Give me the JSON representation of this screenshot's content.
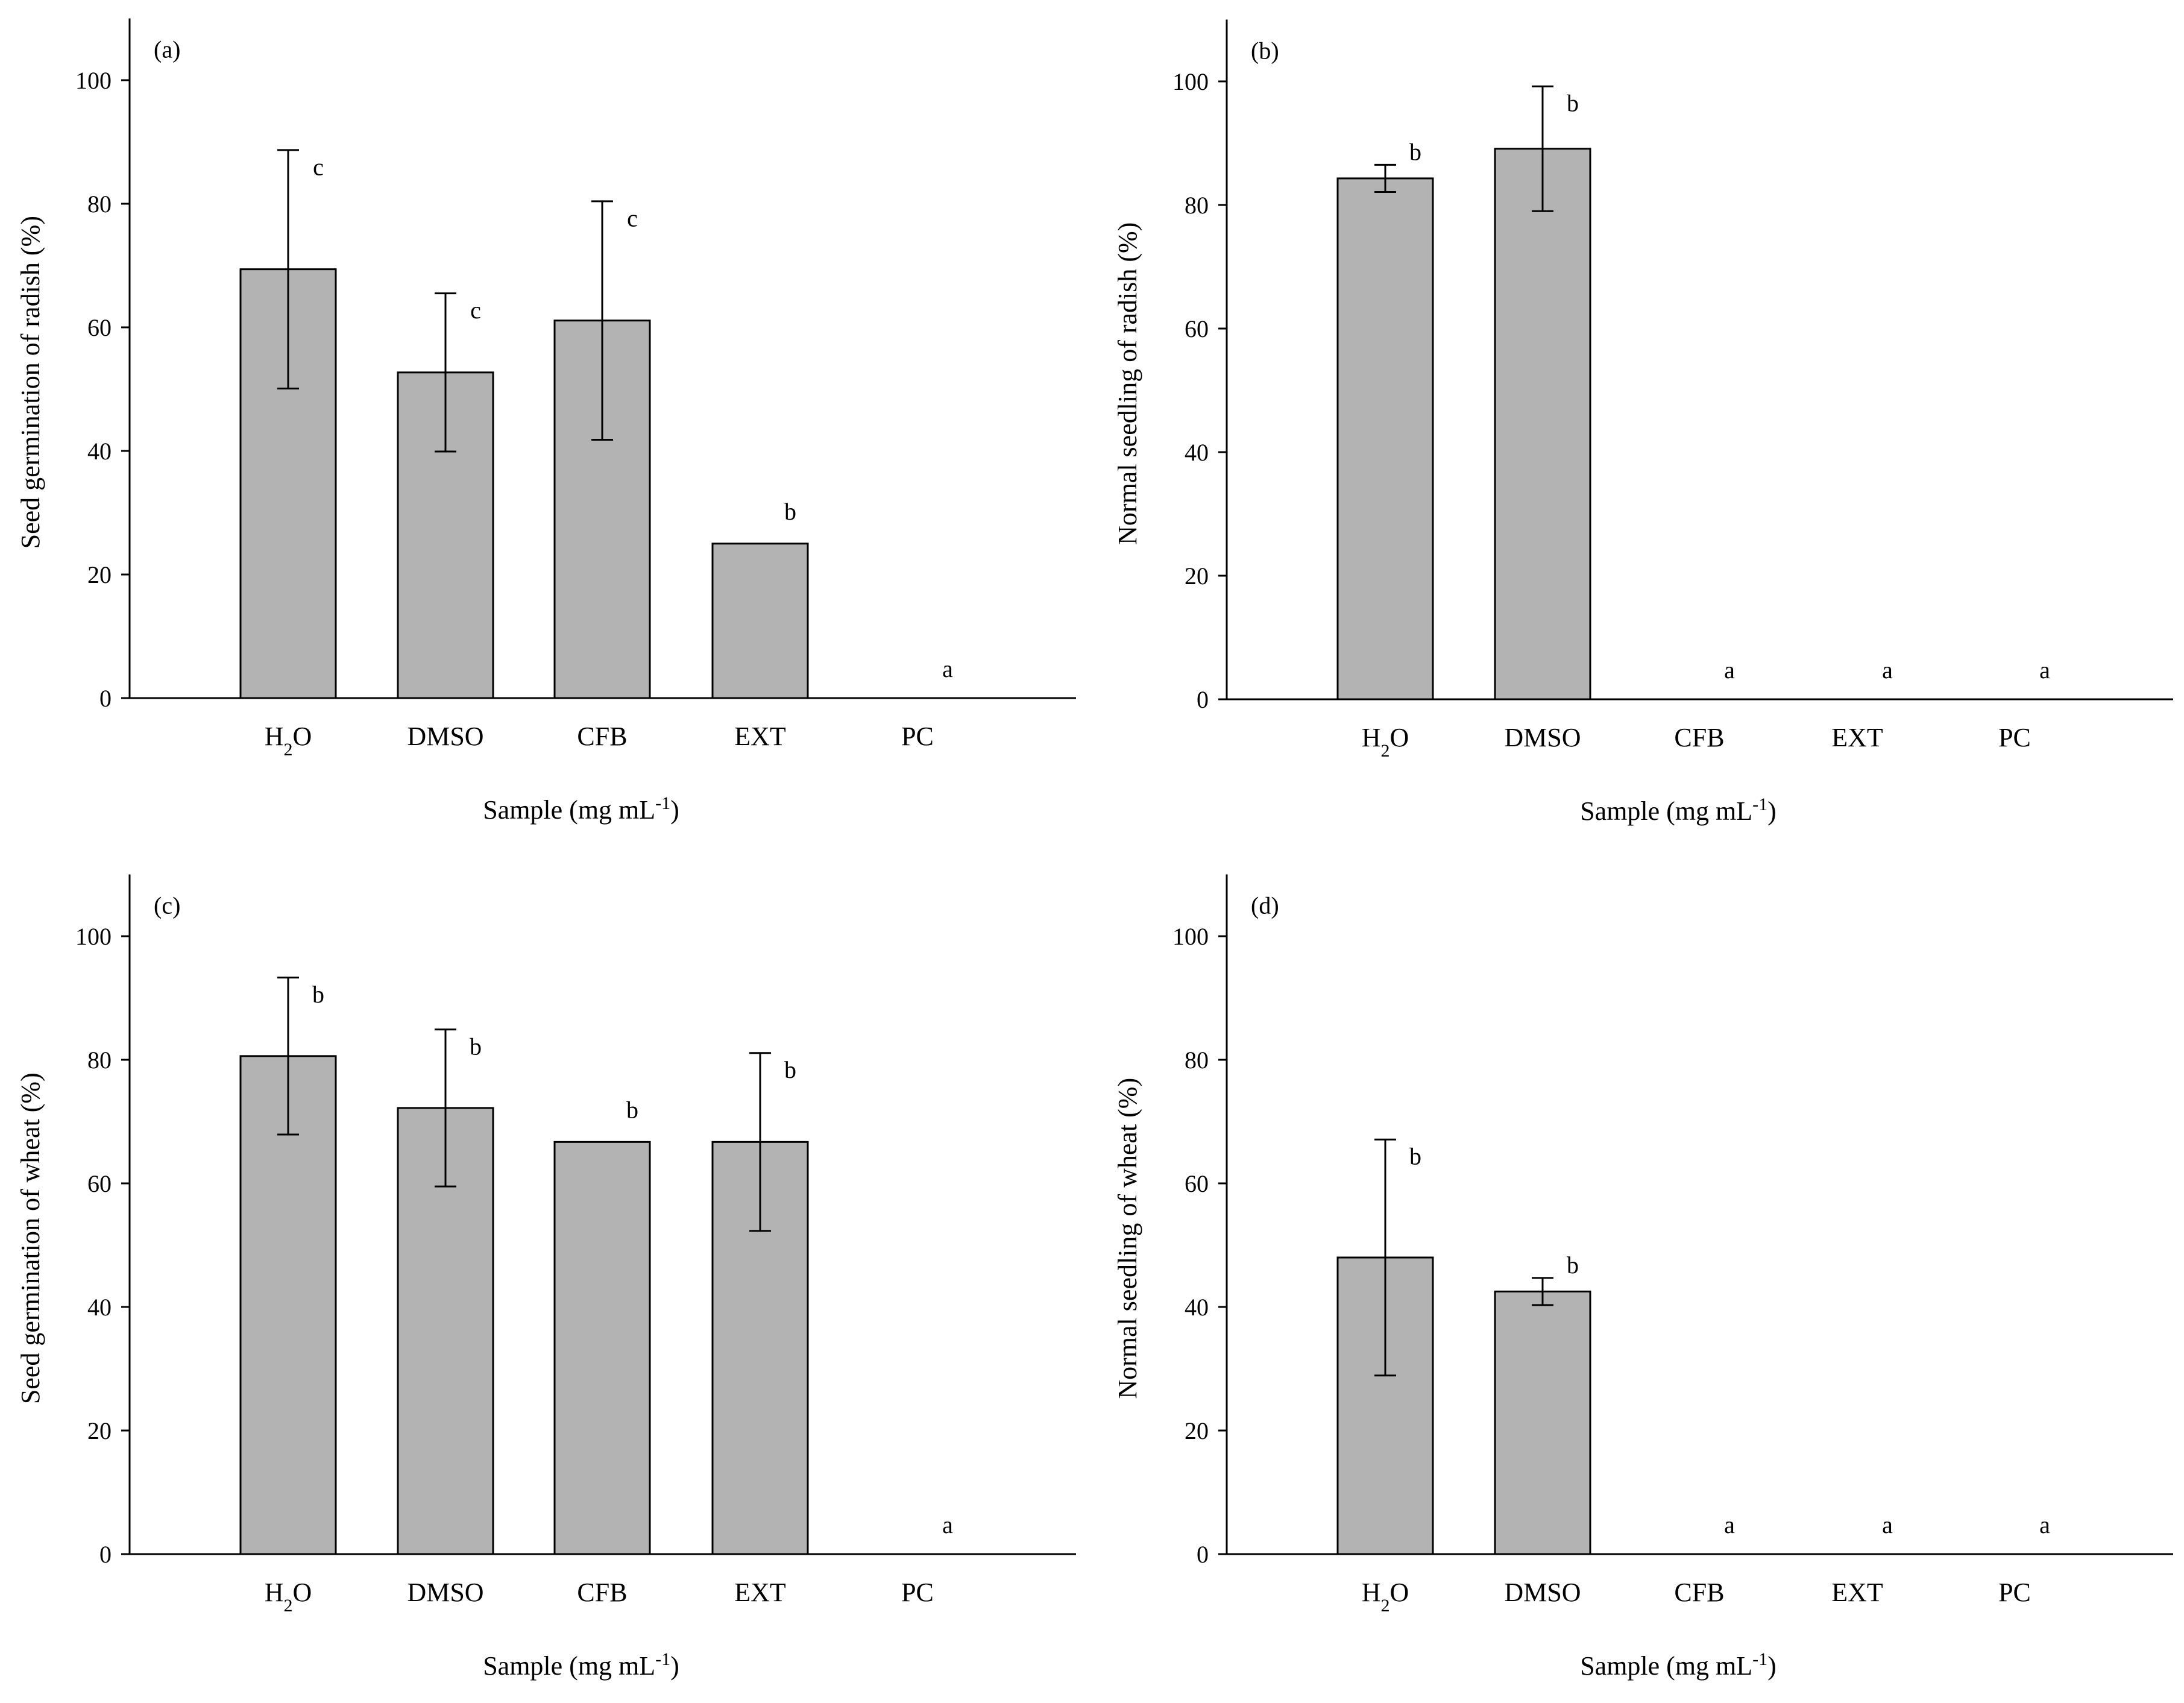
{
  "chart_data": [
    {
      "type": "bar",
      "panel_label": "(a)",
      "categories": [
        "H2O",
        "DMSO",
        "CFB",
        "EXT",
        "PC"
      ],
      "values": [
        69.4,
        52.7,
        61.1,
        25.0,
        0
      ],
      "errors": [
        19.3,
        12.8,
        19.3,
        0,
        0
      ],
      "significance": [
        "c",
        "c",
        "c",
        "b",
        "a"
      ],
      "xlabel": "Sample (mg mL",
      "xlabel_sup": "-1",
      "xlabel_end": ")",
      "ylabel": "Seed germination of radish (%)",
      "ylim": [
        0,
        110
      ],
      "yticks": [
        0,
        20,
        40,
        60,
        80,
        100
      ]
    },
    {
      "type": "bar",
      "panel_label": "(b)",
      "categories": [
        "H2O",
        "DMSO",
        "CFB",
        "EXT",
        "PC"
      ],
      "values": [
        84.3,
        89.1,
        0,
        0,
        0
      ],
      "errors": [
        2.2,
        10.1,
        0,
        0,
        0
      ],
      "significance": [
        "b",
        "b",
        "a",
        "a",
        "a"
      ],
      "xlabel": "Sample (mg mL",
      "xlabel_sup": "-1",
      "xlabel_end": ")",
      "ylabel": "Normal seedling of radish (%)",
      "ylim": [
        0,
        110
      ],
      "yticks": [
        0,
        20,
        40,
        60,
        80,
        100
      ]
    },
    {
      "type": "bar",
      "panel_label": "(c)",
      "categories": [
        "H2O",
        "DMSO",
        "CFB",
        "EXT",
        "PC"
      ],
      "values": [
        80.6,
        72.2,
        66.7,
        66.7,
        0
      ],
      "errors": [
        12.7,
        12.7,
        0,
        14.4,
        0
      ],
      "significance": [
        "b",
        "b",
        "b",
        "b",
        "a"
      ],
      "xlabel": "Sample (mg mL",
      "xlabel_sup": "-1",
      "xlabel_end": ")",
      "ylabel": "Seed germination of wheat (%)",
      "ylim": [
        0,
        110
      ],
      "yticks": [
        0,
        20,
        40,
        60,
        80,
        100
      ]
    },
    {
      "type": "bar",
      "panel_label": "(d)",
      "categories": [
        "H2O",
        "DMSO",
        "CFB",
        "EXT",
        "PC"
      ],
      "values": [
        48.0,
        42.5,
        0,
        0,
        0
      ],
      "errors": [
        19.1,
        2.2,
        0,
        0,
        0
      ],
      "significance": [
        "b",
        "b",
        "a",
        "a",
        "a"
      ],
      "xlabel": "Sample (mg mL",
      "xlabel_sup": "-1",
      "xlabel_end": ")",
      "ylabel": "Normal seedling of wheat (%)",
      "ylim": [
        0,
        110
      ],
      "yticks": [
        0,
        20,
        40,
        60,
        80,
        100
      ]
    }
  ],
  "style": {
    "bar_fill": "#b3b3b3",
    "line_color": "#000000",
    "background": "#ffffff"
  }
}
